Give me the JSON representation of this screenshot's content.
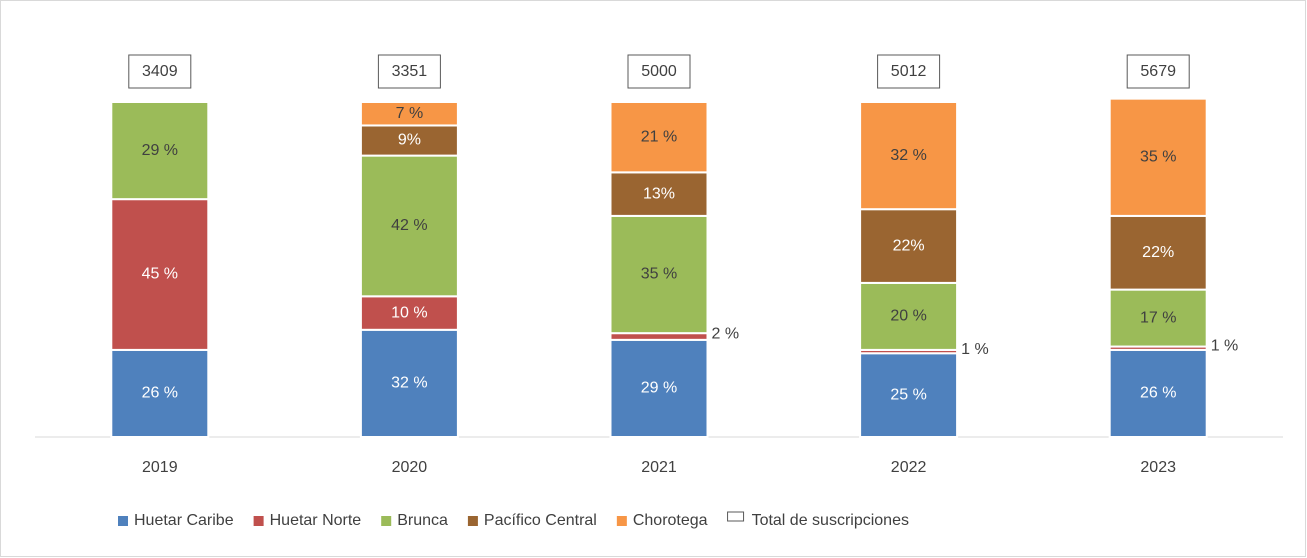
{
  "chart_data": {
    "type": "stacked_bar",
    "categories": [
      "2019",
      "2020",
      "2021",
      "2022",
      "2023"
    ],
    "ylim": [
      0,
      100
    ],
    "series": [
      {
        "name": "Huetar Caribe",
        "color": "#4f81bd",
        "values": [
          26,
          32,
          29,
          25,
          26
        ],
        "value_labels": [
          "26 %",
          "32 %",
          "29 %",
          "25 %",
          "26 %"
        ]
      },
      {
        "name": "Huetar Norte",
        "color": "#c0504d",
        "values": [
          45,
          10,
          2,
          1,
          1
        ],
        "value_labels": [
          "45 %",
          "10 %",
          "2 %",
          "1 %",
          "1 %"
        ]
      },
      {
        "name": "Brunca",
        "color": "#9bbb59",
        "values": [
          29,
          42,
          35,
          20,
          17
        ],
        "value_labels": [
          "29 %",
          "42 %",
          "35 %",
          "20 %",
          "17 %"
        ]
      },
      {
        "name": "Pacífico Central",
        "color": "#9a6531",
        "values": [
          null,
          9,
          13,
          22,
          22
        ],
        "value_labels": [
          null,
          "9%",
          "13%",
          "22%",
          "22%"
        ]
      },
      {
        "name": "Chorotega",
        "color": "#f79646",
        "values": [
          null,
          7,
          21,
          32,
          35
        ],
        "value_labels": [
          null,
          "7 %",
          "21 %",
          "32 %",
          "35 %"
        ]
      }
    ],
    "totals": {
      "name": "Total de suscripciones",
      "values": [
        3409,
        3351,
        5000,
        5012,
        5679
      ]
    }
  }
}
